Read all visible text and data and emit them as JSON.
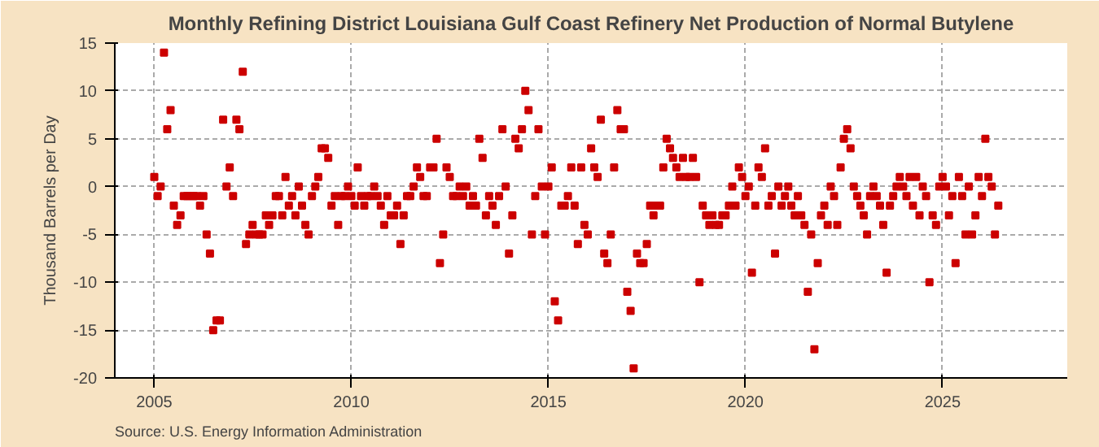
{
  "chart_data": {
    "type": "scatter",
    "title": "Monthly Refining District Louisiana Gulf Coast Refinery Net Production of Normal Butylene",
    "ylabel": "Thousand Barrels per Day",
    "annotations": [
      "Source: U.S. Energy Information Administration"
    ],
    "x": [
      "2005-01",
      "2005-02",
      "2005-03",
      "2005-04",
      "2005-05",
      "2005-06",
      "2005-07",
      "2005-08",
      "2005-09",
      "2005-10",
      "2005-11",
      "2005-12",
      "2006-01",
      "2006-02",
      "2006-03",
      "2006-04",
      "2006-05",
      "2006-06",
      "2006-07",
      "2006-08",
      "2006-09",
      "2006-10",
      "2006-11",
      "2006-12",
      "2007-01",
      "2007-02",
      "2007-03",
      "2007-04",
      "2007-05",
      "2007-06",
      "2007-07",
      "2007-08",
      "2007-09",
      "2007-10",
      "2007-11",
      "2007-12",
      "2008-01",
      "2008-02",
      "2008-03",
      "2008-04",
      "2008-05",
      "2008-06",
      "2008-07",
      "2008-08",
      "2008-09",
      "2008-10",
      "2008-11",
      "2008-12",
      "2009-01",
      "2009-02",
      "2009-03",
      "2009-04",
      "2009-05",
      "2009-06",
      "2009-07",
      "2009-08",
      "2009-09",
      "2009-10",
      "2009-11",
      "2009-12",
      "2010-01",
      "2010-02",
      "2010-03",
      "2010-04",
      "2010-05",
      "2010-06",
      "2010-07",
      "2010-08",
      "2010-09",
      "2010-10",
      "2010-11",
      "2010-12",
      "2011-01",
      "2011-02",
      "2011-03",
      "2011-04",
      "2011-05",
      "2011-06",
      "2011-07",
      "2011-08",
      "2011-09",
      "2011-10",
      "2011-11",
      "2011-12",
      "2012-01",
      "2012-02",
      "2012-03",
      "2012-04",
      "2012-05",
      "2012-06",
      "2012-07",
      "2012-08",
      "2012-09",
      "2012-10",
      "2012-11",
      "2012-12",
      "2013-01",
      "2013-02",
      "2013-03",
      "2013-04",
      "2013-05",
      "2013-06",
      "2013-07",
      "2013-08",
      "2013-09",
      "2013-10",
      "2013-11",
      "2013-12",
      "2014-01",
      "2014-02",
      "2014-03",
      "2014-04",
      "2014-05",
      "2014-06",
      "2014-07",
      "2014-08",
      "2014-09",
      "2014-10",
      "2014-11",
      "2014-12",
      "2015-01",
      "2015-02",
      "2015-03",
      "2015-04",
      "2015-05",
      "2015-06",
      "2015-07",
      "2015-08",
      "2015-09",
      "2015-10",
      "2015-11",
      "2015-12",
      "2016-01",
      "2016-02",
      "2016-03",
      "2016-04",
      "2016-05",
      "2016-06",
      "2016-07",
      "2016-08",
      "2016-09",
      "2016-10",
      "2016-11",
      "2016-12",
      "2017-01",
      "2017-02",
      "2017-03",
      "2017-04",
      "2017-05",
      "2017-06",
      "2017-07",
      "2017-08",
      "2017-09",
      "2017-10",
      "2017-11",
      "2017-12",
      "2018-01",
      "2018-02",
      "2018-03",
      "2018-04",
      "2018-05",
      "2018-06",
      "2018-07",
      "2018-08",
      "2018-09",
      "2018-10",
      "2018-11",
      "2018-12",
      "2019-01",
      "2019-02",
      "2019-03",
      "2019-04",
      "2019-05",
      "2019-06",
      "2019-07",
      "2019-08",
      "2019-09",
      "2019-10",
      "2019-11",
      "2019-12",
      "2020-01",
      "2020-02",
      "2020-03",
      "2020-04",
      "2020-05",
      "2020-06",
      "2020-07",
      "2020-08",
      "2020-09",
      "2020-10",
      "2020-11",
      "2020-12",
      "2021-01",
      "2021-02",
      "2021-03",
      "2021-04",
      "2021-05",
      "2021-06",
      "2021-07",
      "2021-08",
      "2021-09",
      "2021-10",
      "2021-11",
      "2021-12",
      "2022-01",
      "2022-02",
      "2022-03",
      "2022-04",
      "2022-05",
      "2022-06",
      "2022-07",
      "2022-08",
      "2022-09",
      "2022-10",
      "2022-11",
      "2022-12",
      "2023-01",
      "2023-02",
      "2023-03",
      "2023-04",
      "2023-05",
      "2023-06",
      "2023-07",
      "2023-08",
      "2023-09",
      "2023-10",
      "2023-11",
      "2023-12",
      "2024-01",
      "2024-02",
      "2024-03",
      "2024-04",
      "2024-05",
      "2024-06",
      "2024-07",
      "2024-08",
      "2024-09",
      "2024-10",
      "2024-11",
      "2024-12",
      "2025-01",
      "2025-02",
      "2025-03",
      "2025-04",
      "2025-05",
      "2025-06",
      "2025-07",
      "2025-08",
      "2025-09",
      "2025-10",
      "2025-11",
      "2025-12",
      "2026-01",
      "2026-02",
      "2026-03",
      "2026-04",
      "2026-05",
      "2026-06"
    ],
    "series": [
      {
        "color": "#cc0000",
        "values": [
          1,
          -1,
          0,
          14,
          6,
          8,
          -2,
          -4,
          -3,
          -1,
          -1,
          -1,
          -1,
          -1,
          -2,
          -1,
          -5,
          -7,
          -15,
          -14,
          -14,
          7,
          0,
          2,
          -1,
          7,
          6,
          12,
          -6,
          -5,
          -4,
          -5,
          -5,
          -5,
          -3,
          -4,
          -3,
          -1,
          -1,
          -3,
          1,
          -2,
          -1,
          -3,
          0,
          -2,
          -4,
          -5,
          -1,
          0,
          1,
          4,
          4,
          3,
          -2,
          -1,
          -4,
          -1,
          -1,
          0,
          -1,
          -2,
          2,
          -1,
          -2,
          -1,
          -1,
          0,
          -1,
          -2,
          -4,
          -1,
          -3,
          -3,
          -2,
          -6,
          -3,
          -1,
          -1,
          0,
          2,
          1,
          -1,
          -1,
          2,
          2,
          5,
          -8,
          -5,
          2,
          1,
          -1,
          -1,
          0,
          -1,
          0,
          -2,
          -1,
          -2,
          5,
          3,
          -3,
          -1,
          -2,
          -4,
          -1,
          6,
          0,
          -7,
          -3,
          5,
          4,
          6,
          10,
          8,
          -5,
          -1,
          6,
          0,
          -5,
          0,
          2,
          -12,
          -14,
          -2,
          -2,
          -1,
          2,
          -2,
          -6,
          2,
          -4,
          -5,
          4,
          2,
          1,
          7,
          -7,
          -8,
          -5,
          2,
          8,
          6,
          6,
          -11,
          -13,
          -19,
          -7,
          -8,
          -8,
          -6,
          -2,
          -3,
          -2,
          -2,
          2,
          5,
          4,
          3,
          2,
          1,
          3,
          1,
          1,
          3,
          1,
          -10,
          -2,
          -3,
          -4,
          -3,
          -4,
          -4,
          -3,
          -3,
          -2,
          0,
          -2,
          2,
          1,
          -1,
          0,
          -9,
          -2,
          2,
          1,
          4,
          -2,
          -1,
          -7,
          0,
          -2,
          -1,
          0,
          -2,
          -3,
          -1,
          -3,
          -4,
          -11,
          -5,
          -17,
          -8,
          -3,
          -2,
          -4,
          0,
          -1,
          -4,
          2,
          5,
          6,
          4,
          0,
          -1,
          -2,
          -3,
          -5,
          -1,
          0,
          -1,
          -2,
          -4,
          -9,
          -2,
          -1,
          0,
          1,
          0,
          -1,
          1,
          -2,
          1,
          -3,
          0,
          -1,
          -10,
          -3,
          -4,
          0,
          1,
          0,
          -3,
          -1,
          -8,
          1,
          -1,
          -5,
          0,
          -5,
          -3,
          1,
          -1,
          5,
          1,
          0,
          -5,
          -2
        ]
      }
    ],
    "xlim": [
      "2004-01",
      "2028-03"
    ],
    "ylim": [
      -20,
      15
    ],
    "xticks": [
      "2005",
      "2010",
      "2015",
      "2020",
      "2025"
    ],
    "yticks": [
      -20,
      -15,
      -10,
      -5,
      0,
      5,
      10,
      15
    ],
    "grid": true,
    "marker": "square"
  }
}
